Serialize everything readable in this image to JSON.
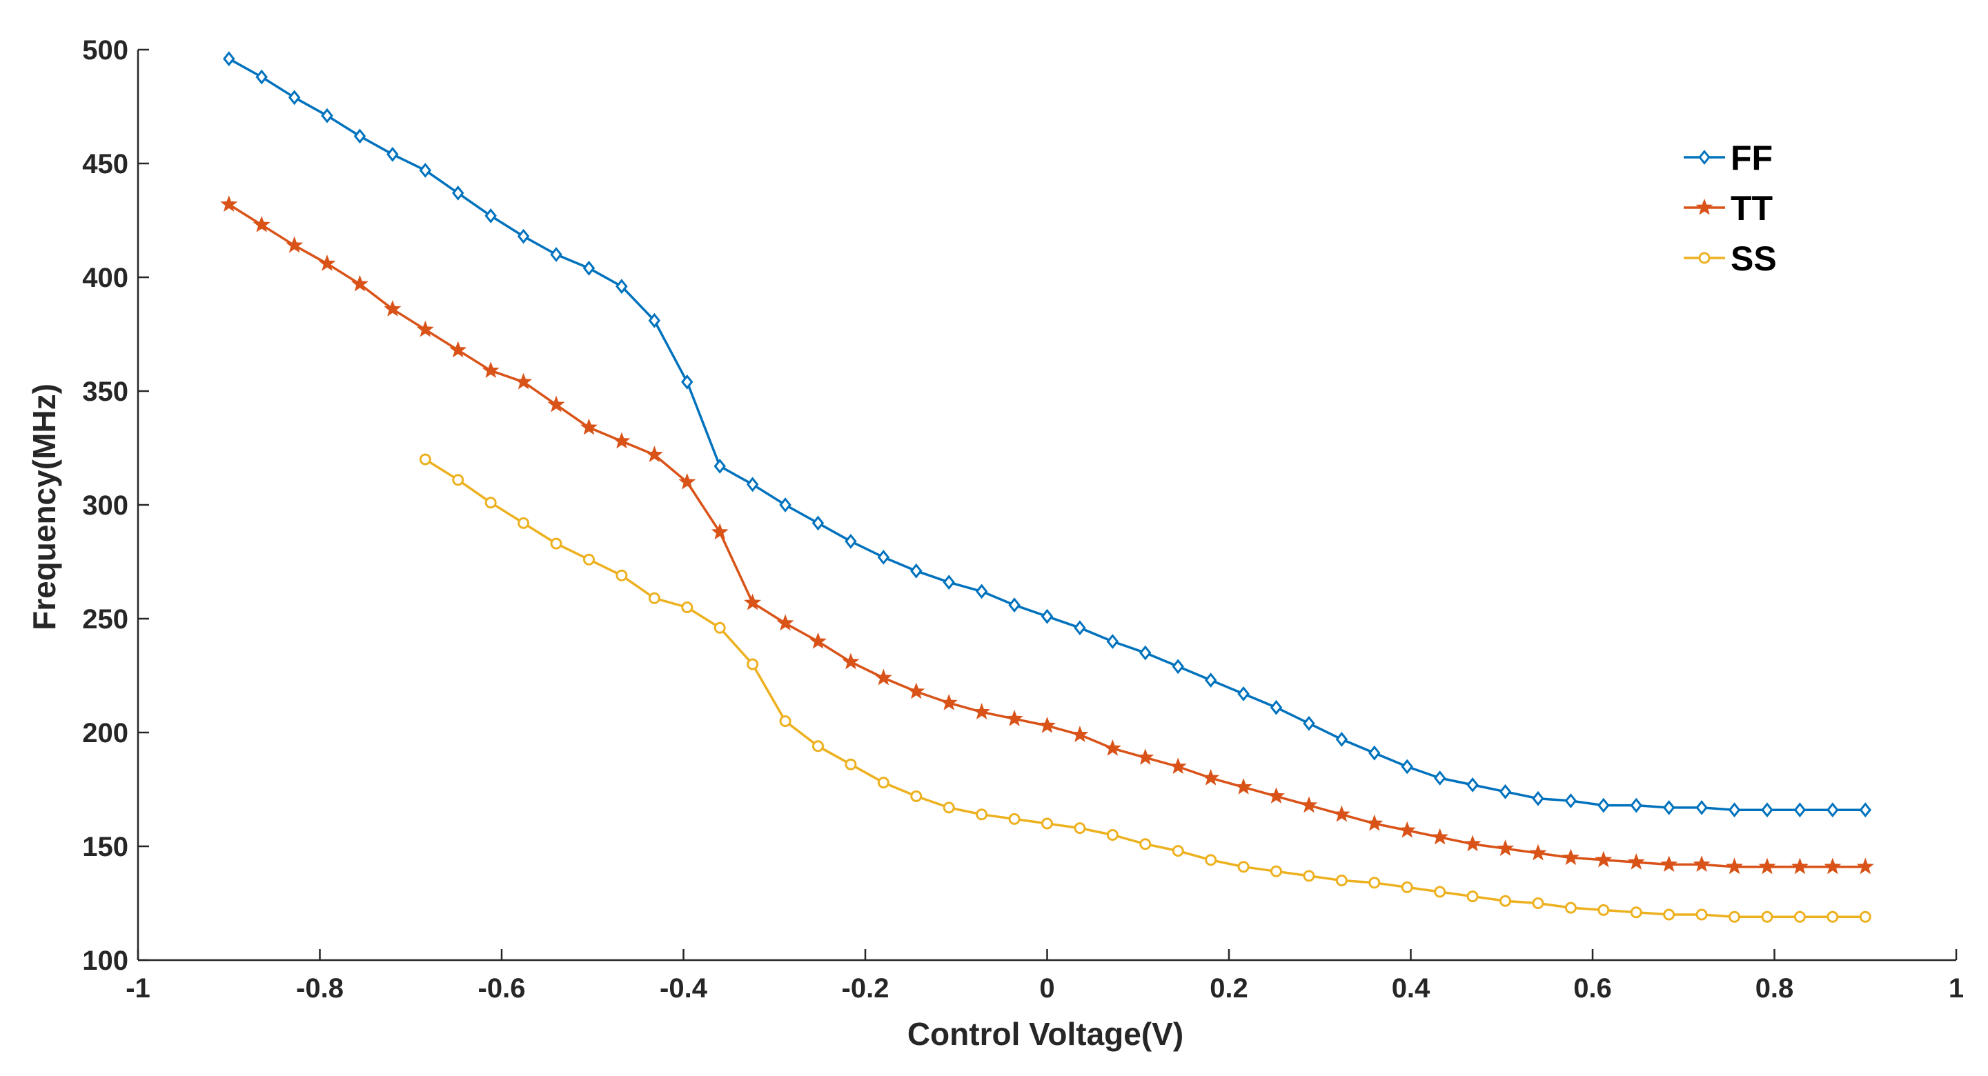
{
  "chart_data": {
    "type": "line",
    "title": "",
    "xlabel": "Control Voltage(V)",
    "ylabel": "Frequency(MHz)",
    "xlim": [
      -1,
      1
    ],
    "ylim": [
      100,
      500
    ],
    "xticks": [
      -1,
      -0.8,
      -0.6,
      -0.4,
      -0.2,
      0,
      0.2,
      0.4,
      0.6,
      0.8,
      1
    ],
    "xtick_labels": [
      "-1",
      "-0.8",
      "-0.6",
      "-0.4",
      "-0.2",
      "0",
      "0.2",
      "0.4",
      "0.6",
      "0.8",
      "1"
    ],
    "yticks": [
      100,
      150,
      200,
      250,
      300,
      350,
      400,
      450,
      500
    ],
    "ytick_labels": [
      "100",
      "150",
      "200",
      "250",
      "300",
      "350",
      "400",
      "450",
      "500"
    ],
    "grid": false,
    "legend_position": "top-right",
    "series": [
      {
        "name": "FF",
        "color": "#0072BD",
        "marker": "diamond",
        "x": [
          -0.9,
          -0.864,
          -0.828,
          -0.792,
          -0.756,
          -0.72,
          -0.684,
          -0.648,
          -0.612,
          -0.576,
          -0.54,
          -0.504,
          -0.468,
          -0.432,
          -0.396,
          -0.36,
          -0.324,
          -0.288,
          -0.252,
          -0.216,
          -0.18,
          -0.144,
          -0.108,
          -0.072,
          -0.036,
          0,
          0.036,
          0.072,
          0.108,
          0.144,
          0.18,
          0.216,
          0.252,
          0.288,
          0.324,
          0.36,
          0.396,
          0.432,
          0.468,
          0.504,
          0.54,
          0.576,
          0.612,
          0.648,
          0.684,
          0.72,
          0.756,
          0.792,
          0.828,
          0.864,
          0.9
        ],
        "values": [
          496,
          488,
          479,
          471,
          462,
          454,
          447,
          437,
          427,
          418,
          410,
          404,
          396,
          381,
          354,
          317,
          309,
          300,
          292,
          284,
          277,
          271,
          266,
          262,
          256,
          251,
          246,
          240,
          235,
          229,
          223,
          217,
          211,
          204,
          197,
          191,
          185,
          180,
          177,
          174,
          171,
          170,
          168,
          168,
          167,
          167,
          166,
          166,
          166,
          166,
          166
        ]
      },
      {
        "name": "TT",
        "color": "#D95319",
        "marker": "star",
        "x": [
          -0.9,
          -0.864,
          -0.828,
          -0.792,
          -0.756,
          -0.72,
          -0.684,
          -0.648,
          -0.612,
          -0.576,
          -0.54,
          -0.504,
          -0.468,
          -0.432,
          -0.396,
          -0.36,
          -0.324,
          -0.288,
          -0.252,
          -0.216,
          -0.18,
          -0.144,
          -0.108,
          -0.072,
          -0.036,
          0,
          0.036,
          0.072,
          0.108,
          0.144,
          0.18,
          0.216,
          0.252,
          0.288,
          0.324,
          0.36,
          0.396,
          0.432,
          0.468,
          0.504,
          0.54,
          0.576,
          0.612,
          0.648,
          0.684,
          0.72,
          0.756,
          0.792,
          0.828,
          0.864,
          0.9
        ],
        "values": [
          432,
          423,
          414,
          406,
          397,
          386,
          377,
          368,
          359,
          354,
          344,
          334,
          328,
          322,
          310,
          288,
          257,
          248,
          240,
          231,
          224,
          218,
          213,
          209,
          206,
          203,
          199,
          193,
          189,
          185,
          180,
          176,
          172,
          168,
          164,
          160,
          157,
          154,
          151,
          149,
          147,
          145,
          144,
          143,
          142,
          142,
          141,
          141,
          141,
          141,
          141
        ]
      },
      {
        "name": "SS",
        "color": "#EDB120",
        "marker": "circle",
        "x": [
          -0.684,
          -0.648,
          -0.612,
          -0.576,
          -0.54,
          -0.504,
          -0.468,
          -0.432,
          -0.396,
          -0.36,
          -0.324,
          -0.288,
          -0.252,
          -0.216,
          -0.18,
          -0.144,
          -0.108,
          -0.072,
          -0.036,
          0,
          0.036,
          0.072,
          0.108,
          0.144,
          0.18,
          0.216,
          0.252,
          0.288,
          0.324,
          0.36,
          0.396,
          0.432,
          0.468,
          0.504,
          0.54,
          0.576,
          0.612,
          0.648,
          0.684,
          0.72,
          0.756,
          0.792,
          0.828,
          0.864,
          0.9
        ],
        "values": [
          320,
          311,
          301,
          292,
          283,
          276,
          269,
          259,
          255,
          246,
          230,
          205,
          194,
          186,
          178,
          172,
          167,
          164,
          162,
          160,
          158,
          155,
          151,
          148,
          144,
          141,
          139,
          137,
          135,
          134,
          132,
          130,
          128,
          126,
          125,
          123,
          122,
          121,
          120,
          120,
          119,
          119,
          119,
          119,
          119
        ]
      }
    ]
  }
}
